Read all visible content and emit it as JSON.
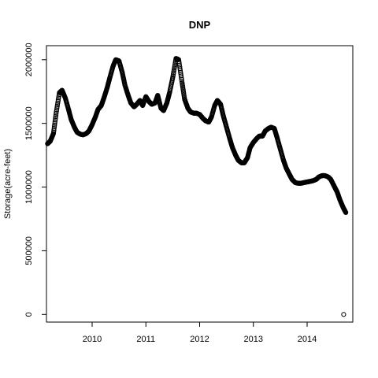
{
  "chart_data": {
    "type": "scatter",
    "title": "DNP",
    "xlabel": "",
    "ylabel": "Storage(acre-feet)",
    "xlim": [
      2009.15,
      2014.85
    ],
    "ylim": [
      -60000,
      2110000
    ],
    "x_ticks": [
      2010,
      2011,
      2012,
      2013,
      2014
    ],
    "x_tick_labels": [
      "2010",
      "2011",
      "2012",
      "2013",
      "2014"
    ],
    "y_ticks": [
      0,
      500000,
      1000000,
      1500000,
      2000000
    ],
    "y_tick_labels": [
      "0",
      "500000",
      "1000000",
      "1500000",
      "2000000"
    ],
    "grid": false,
    "marker": "open-circle",
    "series": [
      {
        "x": [
          2009.17,
          2009.22,
          2009.28,
          2009.33,
          2009.39,
          2009.44,
          2009.5,
          2009.56,
          2009.61,
          2009.67,
          2009.72,
          2009.78,
          2009.83,
          2009.89,
          2009.94,
          2010.0,
          2010.06,
          2010.11,
          2010.17,
          2010.22,
          2010.28,
          2010.33,
          2010.39,
          2010.44,
          2010.5,
          2010.56,
          2010.61,
          2010.67,
          2010.72,
          2010.78,
          2010.83,
          2010.89,
          2010.94,
          2011.0,
          2011.06,
          2011.11,
          2011.17,
          2011.22,
          2011.28,
          2011.33,
          2011.39,
          2011.44,
          2011.5,
          2011.56,
          2011.61,
          2011.67,
          2011.72,
          2011.78,
          2011.83,
          2011.89,
          2011.94,
          2012.0,
          2012.06,
          2012.11,
          2012.17,
          2012.22,
          2012.28,
          2012.33,
          2012.39,
          2012.44,
          2012.5,
          2012.56,
          2012.61,
          2012.67,
          2012.72,
          2012.78,
          2012.83,
          2012.89,
          2012.94,
          2013.0,
          2013.06,
          2013.11,
          2013.17,
          2013.22,
          2013.28,
          2013.33,
          2013.39,
          2013.44,
          2013.5,
          2013.56,
          2013.61,
          2013.67,
          2013.72,
          2013.78,
          2013.83,
          2013.89,
          2013.94,
          2014.0,
          2014.06,
          2014.11,
          2014.17,
          2014.22,
          2014.28,
          2014.33,
          2014.39,
          2014.44,
          2014.5,
          2014.56,
          2014.61,
          2014.67,
          2014.72
        ],
        "y": [
          1340000,
          1360000,
          1420000,
          1580000,
          1740000,
          1760000,
          1700000,
          1610000,
          1530000,
          1470000,
          1430000,
          1415000,
          1410000,
          1420000,
          1440000,
          1490000,
          1550000,
          1610000,
          1640000,
          1700000,
          1780000,
          1860000,
          1950000,
          2000000,
          1990000,
          1900000,
          1800000,
          1720000,
          1660000,
          1630000,
          1650000,
          1680000,
          1640000,
          1710000,
          1670000,
          1650000,
          1660000,
          1720000,
          1620000,
          1600000,
          1660000,
          1740000,
          1860000,
          2010000,
          2000000,
          1830000,
          1690000,
          1620000,
          1590000,
          1580000,
          1580000,
          1570000,
          1540000,
          1520000,
          1510000,
          1550000,
          1640000,
          1680000,
          1650000,
          1560000,
          1470000,
          1380000,
          1310000,
          1250000,
          1210000,
          1190000,
          1190000,
          1230000,
          1310000,
          1350000,
          1380000,
          1400000,
          1400000,
          1440000,
          1460000,
          1470000,
          1460000,
          1390000,
          1300000,
          1210000,
          1150000,
          1100000,
          1060000,
          1035000,
          1030000,
          1030000,
          1035000,
          1040000,
          1045000,
          1050000,
          1060000,
          1080000,
          1090000,
          1090000,
          1080000,
          1060000,
          1010000,
          960000,
          900000,
          840000,
          800000
        ]
      },
      {
        "x": [
          2014.68
        ],
        "y": [
          0
        ]
      }
    ]
  }
}
